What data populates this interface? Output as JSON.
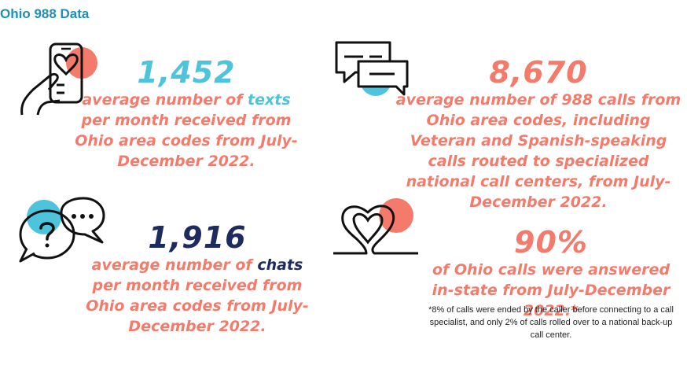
{
  "title": "Ohio 988 Data",
  "colors": {
    "title": "#1f8fb5",
    "coral": "#f47b6b",
    "teal": "#4ec3dc",
    "navy": "#1d2b5e"
  },
  "stats": [
    {
      "icon": "phone-heart-icon",
      "value": "1,452",
      "desc_pre": "average number of ",
      "desc_highlight": "texts",
      "desc_post": " per month received from Ohio area codes from July-December 2022."
    },
    {
      "icon": "chat-bubbles-icon",
      "value": "8,670",
      "desc": "average number of 988 calls from Ohio area codes, including Veteran and Spanish-speaking calls routed to specialized national call centers, from July-December 2022."
    },
    {
      "icon": "question-bubbles-icon",
      "value": "1,916",
      "desc_pre": "average number of ",
      "desc_highlight": "chats",
      "desc_post": " per month received from Ohio area codes from July-December 2022."
    },
    {
      "icon": "heart-line-icon",
      "value": "90%",
      "desc": "of Ohio calls were answered in-state from July-December 2022.*",
      "note": "*8% of calls were ended by the caller before connecting to a call specialist, and only 2% of calls rolled over to a national back-up call center."
    }
  ]
}
